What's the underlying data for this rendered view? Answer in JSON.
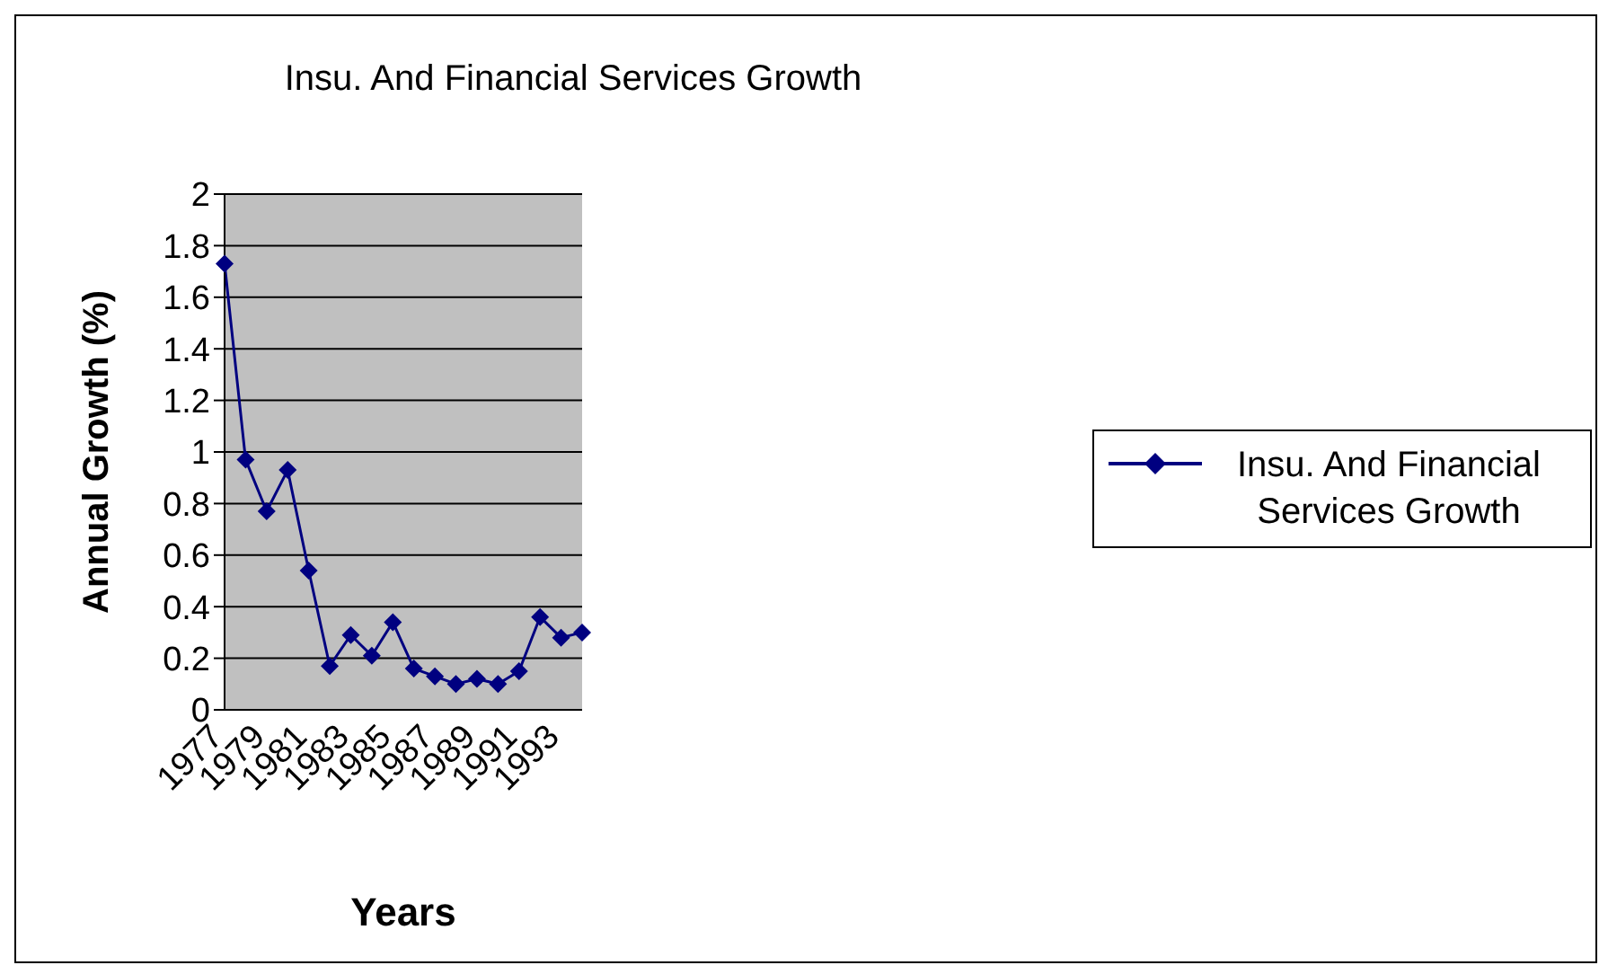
{
  "chart_data": {
    "type": "line",
    "title": "Insu. And Financial Services Growth",
    "xlabel": "Years",
    "ylabel": "Annual Growth (%)",
    "categories": [
      "1977",
      null,
      "1979",
      null,
      "1981",
      null,
      "1983",
      null,
      "1985",
      null,
      "1987",
      null,
      "1989",
      null,
      "1991",
      null,
      "1993",
      null
    ],
    "series": [
      {
        "name": "Insu. And Financial Services Growth",
        "color": "#000080",
        "values": [
          1.73,
          0.97,
          0.77,
          0.93,
          0.54,
          0.17,
          0.29,
          0.21,
          0.34,
          0.16,
          0.13,
          0.1,
          0.12,
          0.1,
          0.15,
          0.36,
          0.28,
          0.3
        ]
      }
    ],
    "ylim": [
      0,
      2
    ],
    "yticks": [
      0,
      0.2,
      0.4,
      0.6,
      0.8,
      1,
      1.2,
      1.4,
      1.6,
      1.8,
      2
    ],
    "grid": "y",
    "legend": "right",
    "marker": "diamond",
    "line_style": "solid"
  }
}
